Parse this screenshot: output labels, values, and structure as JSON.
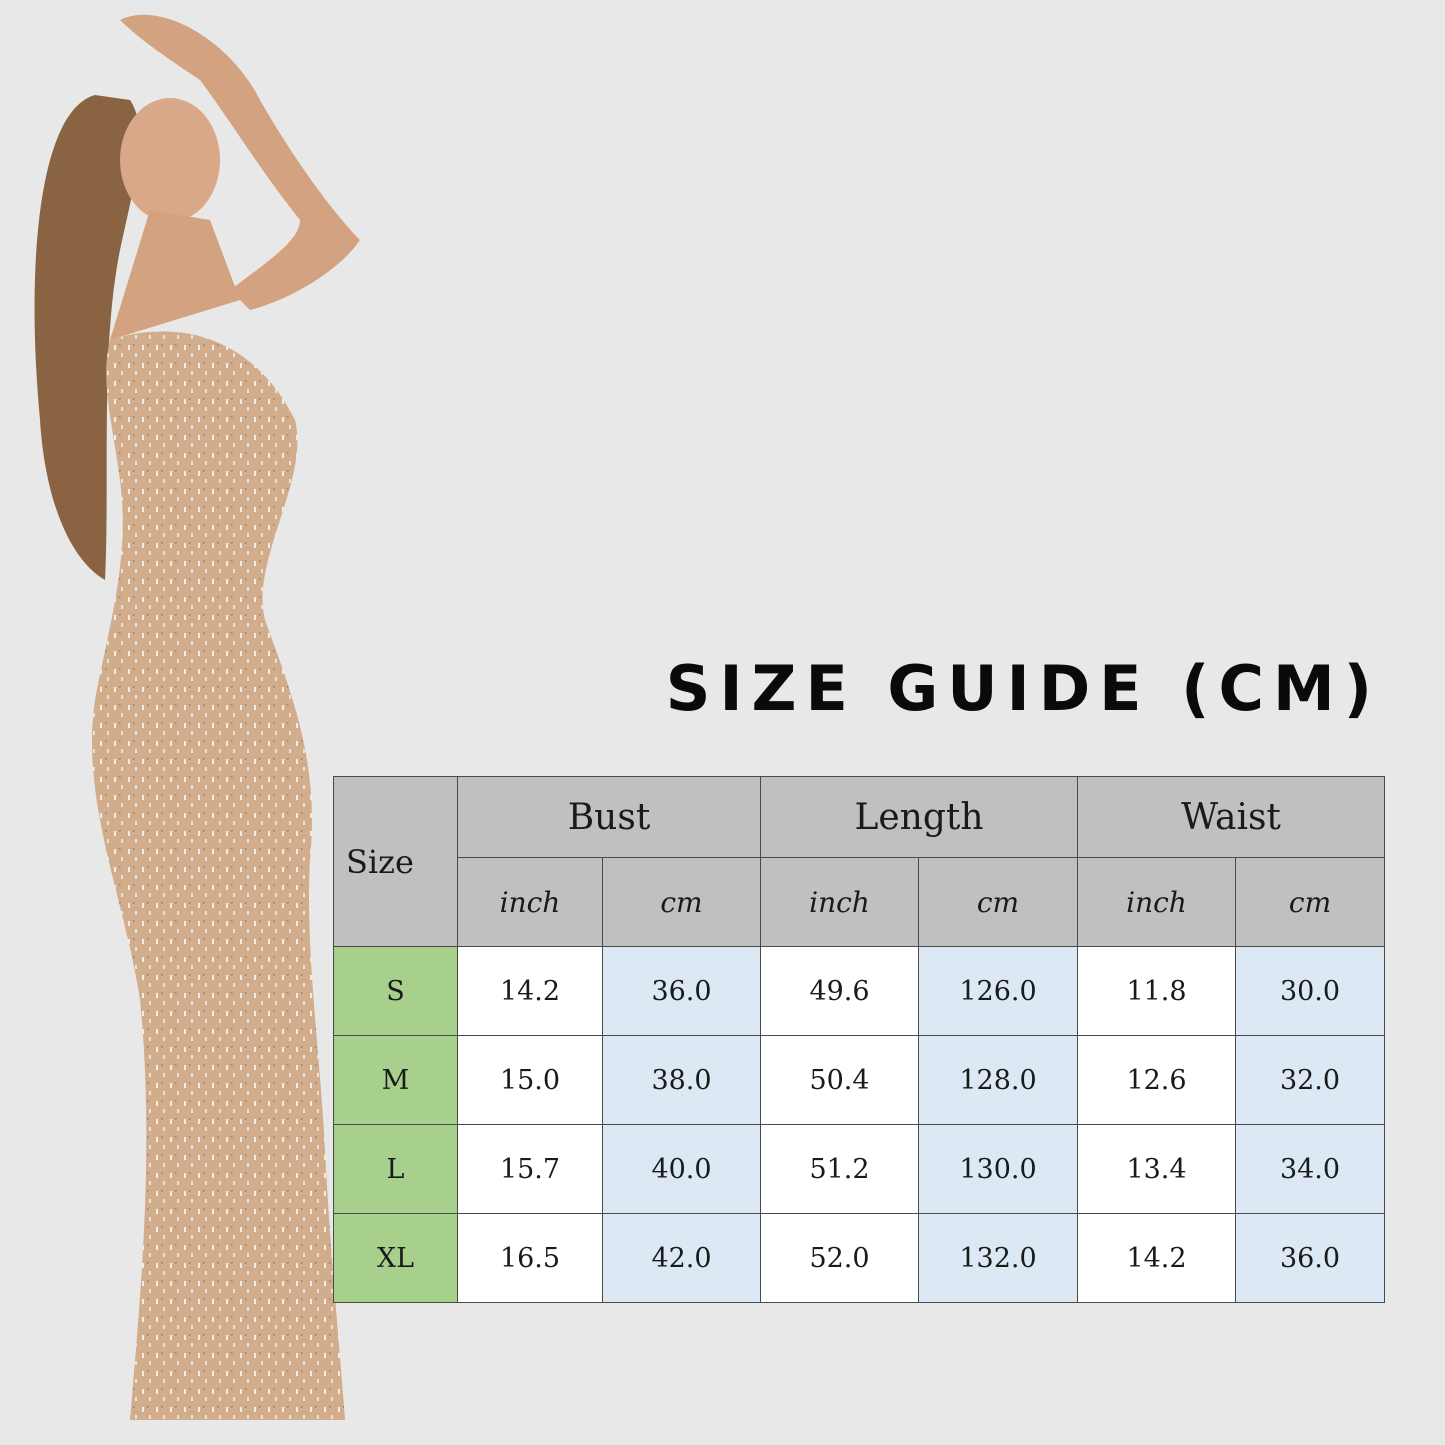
{
  "title": "SIZE GUIDE (CM)",
  "colors": {
    "header_bg": "#c0c0c0",
    "size_col_bg": "#a8d08d",
    "cm_col_bg": "#dce9f5",
    "inch_col_bg": "#ffffff",
    "background": "#e8e8e8"
  },
  "image": {
    "description_icon": "model-photo"
  },
  "table": {
    "size_header": "Size",
    "groups": [
      "Bust",
      "Length",
      "Waist"
    ],
    "units": [
      "inch",
      "cm",
      "inch",
      "cm",
      "inch",
      "cm"
    ],
    "rows": [
      {
        "size": "S",
        "values": [
          "14.2",
          "36.0",
          "49.6",
          "126.0",
          "11.8",
          "30.0"
        ]
      },
      {
        "size": "M",
        "values": [
          "15.0",
          "38.0",
          "50.4",
          "128.0",
          "12.6",
          "32.0"
        ]
      },
      {
        "size": "L",
        "values": [
          "15.7",
          "40.0",
          "51.2",
          "130.0",
          "13.4",
          "34.0"
        ]
      },
      {
        "size": "XL",
        "values": [
          "16.5",
          "42.0",
          "52.0",
          "132.0",
          "14.2",
          "36.0"
        ]
      }
    ]
  }
}
